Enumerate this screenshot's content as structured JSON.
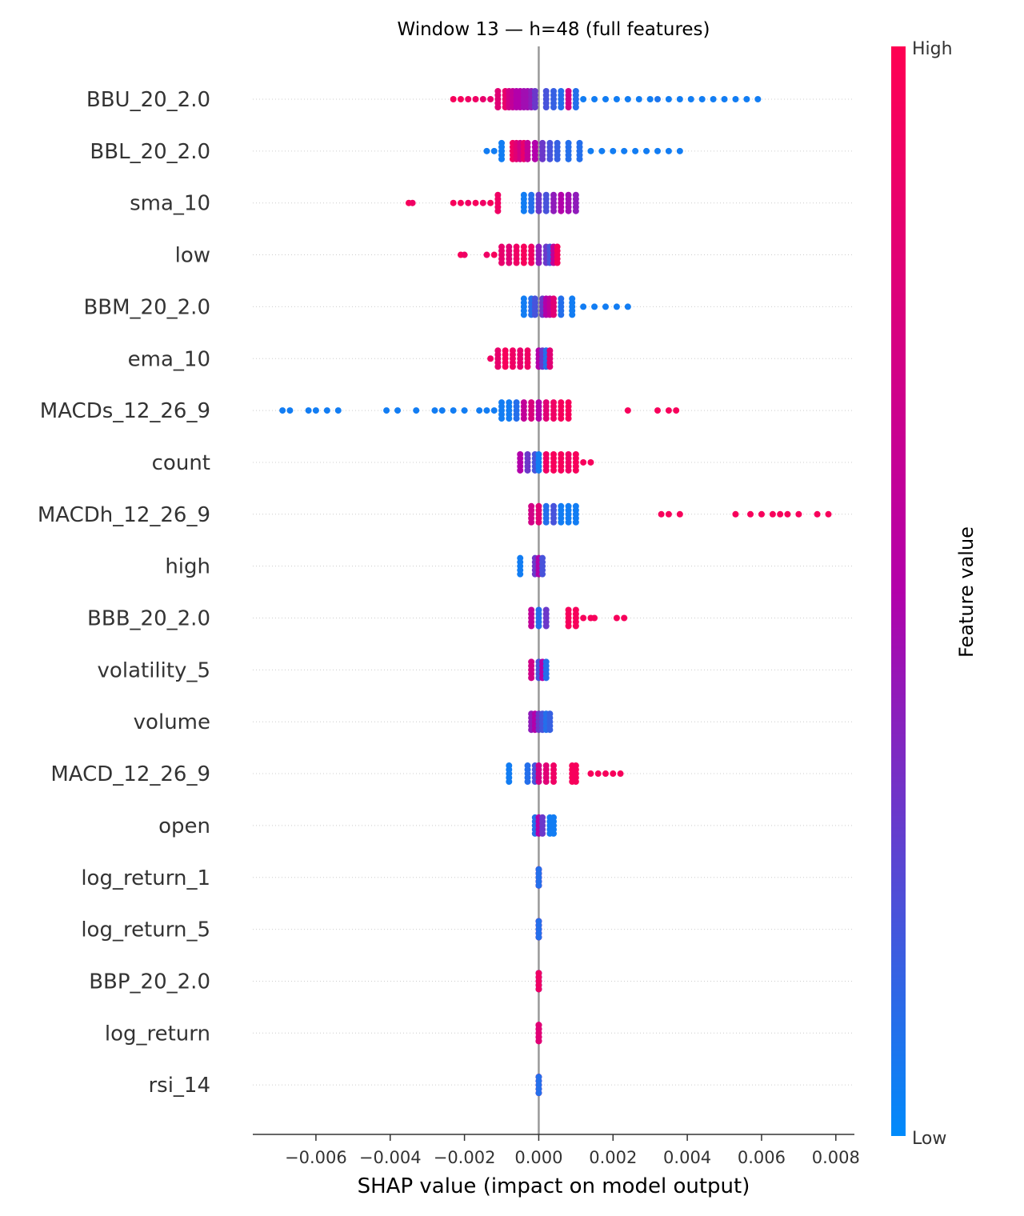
{
  "chart_data": {
    "type": "scatter",
    "title": "Window 13 — h=48 (full features)",
    "xlabel": "SHAP value (impact on model output)",
    "xlim": [
      -0.0077,
      0.0085
    ],
    "x_ticks": [
      -0.006,
      -0.004,
      -0.002,
      0.0,
      0.002,
      0.004,
      0.006,
      0.008
    ],
    "x_tick_labels": [
      "−0.006",
      "−0.004",
      "−0.002",
      "0.000",
      "0.002",
      "0.004",
      "0.006",
      "0.008"
    ],
    "colorbar": {
      "label": "Feature value",
      "high_label": "High",
      "low_label": "Low",
      "high_color": "#ff0052",
      "mid_color": "#b300aa",
      "low_color": "#008bfb"
    },
    "zero_line_color": "#999999",
    "features": [
      {
        "name": "BBU_20_2.0",
        "points": [
          [
            -0.0023,
            0.95
          ],
          [
            -0.0021,
            0.95
          ],
          [
            -0.0019,
            0.9
          ],
          [
            -0.0017,
            0.9
          ],
          [
            -0.0015,
            0.85
          ],
          [
            -0.0013,
            0.85
          ],
          [
            -0.0011,
            0.8
          ],
          [
            -0.0009,
            0.85
          ],
          [
            -0.0008,
            0.7
          ],
          [
            -0.0007,
            0.6
          ],
          [
            -0.0006,
            0.5
          ],
          [
            -0.0005,
            0.5
          ],
          [
            -0.0004,
            0.45
          ],
          [
            -0.0003,
            0.45
          ],
          [
            -0.0002,
            0.4
          ],
          [
            -0.0001,
            0.3
          ],
          [
            0.0002,
            0.2
          ],
          [
            0.0004,
            0.15
          ],
          [
            0.0006,
            0.1
          ],
          [
            0.0008,
            0.7
          ],
          [
            0.001,
            0.1
          ],
          [
            0.0012,
            0.05
          ],
          [
            0.0015,
            0.05
          ],
          [
            0.0018,
            0.05
          ],
          [
            0.0021,
            0.05
          ],
          [
            0.0024,
            0.05
          ],
          [
            0.0027,
            0.05
          ],
          [
            0.003,
            0.05
          ],
          [
            0.0032,
            0.08
          ],
          [
            0.0035,
            0.05
          ],
          [
            0.0038,
            0.05
          ],
          [
            0.0041,
            0.05
          ],
          [
            0.0044,
            0.05
          ],
          [
            0.0047,
            0.05
          ],
          [
            0.005,
            0.05
          ],
          [
            0.0053,
            0.05
          ],
          [
            0.0056,
            0.05
          ],
          [
            0.0059,
            0.05
          ]
        ]
      },
      {
        "name": "BBL_20_2.0",
        "points": [
          [
            -0.0014,
            0.05
          ],
          [
            -0.0012,
            0.05
          ],
          [
            -0.001,
            0.05
          ],
          [
            -0.0007,
            0.9
          ],
          [
            -0.0006,
            0.8
          ],
          [
            -0.0005,
            0.7
          ],
          [
            -0.0004,
            0.85
          ],
          [
            -0.0003,
            0.6
          ],
          [
            -0.0001,
            0.5
          ],
          [
            0.0001,
            0.3
          ],
          [
            0.0003,
            0.2
          ],
          [
            0.0005,
            0.15
          ],
          [
            0.0008,
            0.1
          ],
          [
            0.0011,
            0.1
          ],
          [
            0.0014,
            0.05
          ],
          [
            0.0017,
            0.05
          ],
          [
            0.002,
            0.05
          ],
          [
            0.0023,
            0.05
          ],
          [
            0.0026,
            0.05
          ],
          [
            0.0029,
            0.05
          ],
          [
            0.0032,
            0.05
          ],
          [
            0.0035,
            0.05
          ],
          [
            0.0038,
            0.05
          ]
        ]
      },
      {
        "name": "sma_10",
        "points": [
          [
            -0.0035,
            0.95
          ],
          [
            -0.0034,
            0.9
          ],
          [
            -0.0023,
            0.95
          ],
          [
            -0.0021,
            0.95
          ],
          [
            -0.0019,
            0.9
          ],
          [
            -0.0017,
            0.95
          ],
          [
            -0.0015,
            0.9
          ],
          [
            -0.0013,
            0.95
          ],
          [
            -0.0011,
            0.9
          ],
          [
            -0.0004,
            0.05
          ],
          [
            -0.0002,
            0.1
          ],
          [
            0.0,
            0.3
          ],
          [
            0.0002,
            0.2
          ],
          [
            0.0004,
            0.4
          ],
          [
            0.0006,
            0.5
          ],
          [
            0.0008,
            0.45
          ],
          [
            0.001,
            0.4
          ]
        ]
      },
      {
        "name": "low",
        "points": [
          [
            -0.0021,
            0.95
          ],
          [
            -0.002,
            0.9
          ],
          [
            -0.0014,
            0.9
          ],
          [
            -0.0012,
            0.95
          ],
          [
            -0.001,
            0.85
          ],
          [
            -0.0008,
            0.8
          ],
          [
            -0.0006,
            0.9
          ],
          [
            -0.0004,
            0.95
          ],
          [
            -0.0002,
            0.9
          ],
          [
            0.0,
            0.4
          ],
          [
            0.0002,
            0.3
          ],
          [
            0.0003,
            0.2
          ],
          [
            0.0004,
            0.6
          ],
          [
            0.0005,
            0.95
          ]
        ]
      },
      {
        "name": "BBM_20_2.0",
        "points": [
          [
            -0.0004,
            0.05
          ],
          [
            -0.0002,
            0.1
          ],
          [
            -0.0001,
            0.2
          ],
          [
            0.0001,
            0.3
          ],
          [
            0.0002,
            0.5
          ],
          [
            0.0003,
            0.6
          ],
          [
            0.0004,
            0.8
          ],
          [
            0.0006,
            0.1
          ],
          [
            0.0009,
            0.05
          ],
          [
            0.0012,
            0.05
          ],
          [
            0.0015,
            0.05
          ],
          [
            0.0018,
            0.05
          ],
          [
            0.0021,
            0.05
          ],
          [
            0.0024,
            0.05
          ]
        ]
      },
      {
        "name": "ema_10",
        "points": [
          [
            -0.0013,
            0.9
          ],
          [
            -0.0011,
            0.85
          ],
          [
            -0.0009,
            0.95
          ],
          [
            -0.0007,
            0.9
          ],
          [
            -0.0005,
            0.85
          ],
          [
            -0.0003,
            0.9
          ],
          [
            0.0,
            0.5
          ],
          [
            0.0001,
            0.3
          ],
          [
            0.0002,
            0.1
          ],
          [
            0.0003,
            0.8
          ]
        ]
      },
      {
        "name": "MACDs_12_26_9",
        "points": [
          [
            -0.0069,
            0.05
          ],
          [
            -0.0067,
            0.05
          ],
          [
            -0.0062,
            0.05
          ],
          [
            -0.006,
            0.05
          ],
          [
            -0.0057,
            0.05
          ],
          [
            -0.0054,
            0.05
          ],
          [
            -0.0041,
            0.05
          ],
          [
            -0.0038,
            0.05
          ],
          [
            -0.0033,
            0.05
          ],
          [
            -0.0028,
            0.05
          ],
          [
            -0.0026,
            0.05
          ],
          [
            -0.0023,
            0.05
          ],
          [
            -0.002,
            0.05
          ],
          [
            -0.0016,
            0.05
          ],
          [
            -0.0014,
            0.05
          ],
          [
            -0.0012,
            0.05
          ],
          [
            -0.001,
            0.05
          ],
          [
            -0.0008,
            0.05
          ],
          [
            -0.0006,
            0.1
          ],
          [
            -0.0004,
            0.6
          ],
          [
            -0.0002,
            0.75
          ],
          [
            0.0,
            0.5
          ],
          [
            0.0002,
            0.8
          ],
          [
            0.0004,
            0.9
          ],
          [
            0.0006,
            0.95
          ],
          [
            0.0008,
            0.95
          ],
          [
            0.0024,
            0.95
          ],
          [
            0.0032,
            0.95
          ],
          [
            0.0035,
            0.95
          ],
          [
            0.0037,
            0.95
          ]
        ]
      },
      {
        "name": "count",
        "points": [
          [
            -0.0005,
            0.5
          ],
          [
            -0.0003,
            0.3
          ],
          [
            -0.0001,
            0.2
          ],
          [
            0.0,
            0.05
          ],
          [
            0.0002,
            0.9
          ],
          [
            0.0004,
            0.95
          ],
          [
            0.0006,
            0.95
          ],
          [
            0.0008,
            0.9
          ],
          [
            0.001,
            0.95
          ],
          [
            0.0012,
            0.95
          ],
          [
            0.0014,
            0.95
          ]
        ]
      },
      {
        "name": "MACDh_12_26_9",
        "points": [
          [
            -0.0002,
            0.7
          ],
          [
            0.0,
            0.8
          ],
          [
            0.0002,
            0.1
          ],
          [
            0.0004,
            0.2
          ],
          [
            0.0006,
            0.05
          ],
          [
            0.0008,
            0.05
          ],
          [
            0.001,
            0.05
          ],
          [
            0.0033,
            0.95
          ],
          [
            0.0035,
            0.95
          ],
          [
            0.0038,
            0.95
          ],
          [
            0.0053,
            0.95
          ],
          [
            0.0057,
            0.95
          ],
          [
            0.006,
            0.95
          ],
          [
            0.0063,
            0.95
          ],
          [
            0.0065,
            0.95
          ],
          [
            0.0067,
            0.95
          ],
          [
            0.007,
            0.95
          ],
          [
            0.0075,
            0.95
          ],
          [
            0.0078,
            0.95
          ]
        ]
      },
      {
        "name": "high",
        "points": [
          [
            -0.0005,
            0.05
          ],
          [
            -0.0001,
            0.3
          ],
          [
            0.0,
            0.5
          ],
          [
            0.0001,
            0.2
          ]
        ]
      },
      {
        "name": "BBB_20_2.0",
        "points": [
          [
            -0.0002,
            0.6
          ],
          [
            0.0,
            0.1
          ],
          [
            0.0002,
            0.3
          ],
          [
            0.0008,
            0.95
          ],
          [
            0.001,
            0.95
          ],
          [
            0.0012,
            0.95
          ],
          [
            0.0014,
            0.95
          ],
          [
            0.0015,
            0.95
          ],
          [
            0.0021,
            0.95
          ],
          [
            0.0023,
            0.95
          ]
        ]
      },
      {
        "name": "volatility_5",
        "points": [
          [
            -0.0002,
            0.7
          ],
          [
            0.0,
            0.2
          ],
          [
            0.0001,
            0.5
          ],
          [
            0.0002,
            0.1
          ]
        ]
      },
      {
        "name": "volume",
        "points": [
          [
            -0.0002,
            0.4
          ],
          [
            -0.0001,
            0.5
          ],
          [
            0.0,
            0.3
          ],
          [
            0.0001,
            0.2
          ],
          [
            0.0002,
            0.1
          ],
          [
            0.0003,
            0.15
          ]
        ]
      },
      {
        "name": "MACD_12_26_9",
        "points": [
          [
            -0.0008,
            0.05
          ],
          [
            -0.0003,
            0.1
          ],
          [
            -0.0001,
            0.2
          ],
          [
            0.0,
            0.7
          ],
          [
            0.0002,
            0.8
          ],
          [
            0.0004,
            0.9
          ],
          [
            0.0009,
            0.95
          ],
          [
            0.001,
            0.95
          ],
          [
            0.0014,
            0.95
          ],
          [
            0.0016,
            0.95
          ],
          [
            0.0018,
            0.95
          ],
          [
            0.002,
            0.95
          ],
          [
            0.0022,
            0.95
          ]
        ]
      },
      {
        "name": "open",
        "points": [
          [
            -0.0001,
            0.1
          ],
          [
            0.0,
            0.5
          ],
          [
            0.0001,
            0.3
          ],
          [
            0.0003,
            0.05
          ],
          [
            0.0004,
            0.05
          ]
        ]
      },
      {
        "name": "log_return_1",
        "points": [
          [
            0.0,
            0.5
          ],
          [
            0.0,
            0.9
          ],
          [
            0.0,
            0.1
          ]
        ]
      },
      {
        "name": "log_return_5",
        "points": [
          [
            0.0,
            0.6
          ],
          [
            0.0,
            0.9
          ],
          [
            0.0,
            0.1
          ]
        ]
      },
      {
        "name": "BBP_20_2.0",
        "points": [
          [
            0.0,
            0.4
          ],
          [
            0.0,
            0.1
          ],
          [
            0.0,
            0.9
          ]
        ]
      },
      {
        "name": "log_return",
        "points": [
          [
            0.0,
            0.95
          ],
          [
            0.0,
            0.6
          ],
          [
            0.0,
            0.8
          ]
        ]
      },
      {
        "name": "rsi_14",
        "points": [
          [
            0.0,
            0.5
          ],
          [
            0.0,
            0.9
          ],
          [
            0.0,
            0.1
          ]
        ]
      }
    ]
  }
}
